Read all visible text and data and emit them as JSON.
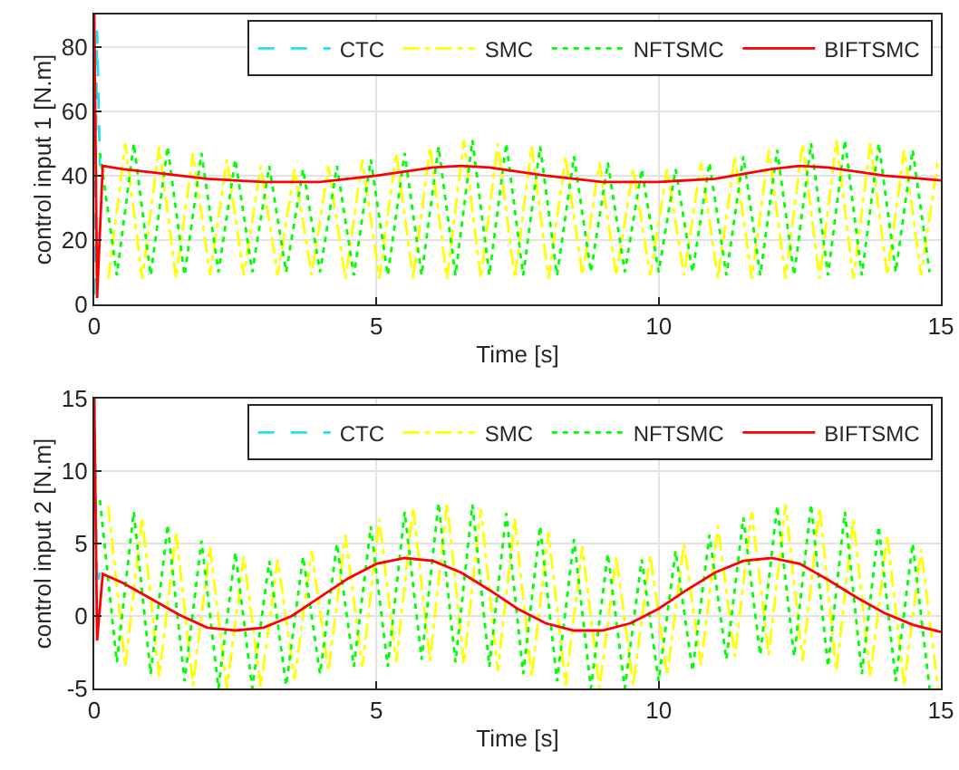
{
  "chart_data": [
    {
      "type": "line",
      "xlabel": "Time [s]",
      "ylabel": "control input 1 [N.m]",
      "xlim": [
        0,
        15
      ],
      "xticks": [
        0,
        5,
        10,
        15
      ],
      "ylim": [
        0,
        90
      ],
      "yticks": [
        0,
        20,
        40,
        60,
        80
      ],
      "grid": true,
      "legend": "top right",
      "series": [
        {
          "name": "CTC",
          "color": "#22e0f0",
          "line_style": "dashed",
          "x": [
            0,
            0.05,
            0.1
          ],
          "values": [
            3,
            85,
            43
          ]
        },
        {
          "name": "SMC",
          "color": "#ffff00",
          "line_style": "dashdot",
          "x": [
            0.25,
            0.55,
            0.85,
            1.15,
            1.45,
            1.75,
            2.05,
            2.35,
            2.65,
            2.95,
            3.25,
            3.55,
            3.85,
            4.15,
            4.45,
            4.75,
            5.05,
            5.35,
            5.65,
            5.95,
            6.25,
            6.55,
            6.85,
            7.15,
            7.45,
            7.75,
            8.05,
            8.35,
            8.65,
            8.95,
            9.25,
            9.55,
            9.85,
            10.15,
            10.45,
            10.75,
            11.05,
            11.35,
            11.65,
            11.95,
            12.25,
            12.55,
            12.85,
            13.15,
            13.45,
            13.75,
            14.05,
            14.35,
            14.65,
            14.95
          ],
          "values": [
            8,
            50,
            8,
            49,
            8,
            47,
            9,
            45,
            9,
            43,
            9,
            42,
            9,
            43,
            8,
            45,
            8,
            47,
            8,
            49,
            8,
            51,
            8,
            50,
            8,
            49,
            8,
            46,
            9,
            44,
            9,
            42,
            9,
            42,
            9,
            44,
            8,
            46,
            8,
            48,
            8,
            50,
            8,
            51,
            8,
            50,
            9,
            48,
            9,
            45
          ]
        },
        {
          "name": "NFTSMC",
          "color": "#00ff00",
          "line_style": "dotted",
          "x": [
            0.1,
            0.4,
            0.7,
            1.0,
            1.3,
            1.6,
            1.9,
            2.2,
            2.5,
            2.8,
            3.1,
            3.4,
            3.7,
            4.0,
            4.3,
            4.6,
            4.9,
            5.2,
            5.5,
            5.8,
            6.1,
            6.4,
            6.7,
            7.0,
            7.3,
            7.6,
            7.9,
            8.2,
            8.5,
            8.8,
            9.1,
            9.4,
            9.7,
            10.0,
            10.3,
            10.6,
            10.9,
            11.2,
            11.5,
            11.8,
            12.1,
            12.4,
            12.7,
            13.0,
            13.3,
            13.6,
            13.9,
            14.2,
            14.5,
            14.8
          ],
          "values": [
            47,
            9,
            50,
            9,
            49,
            9,
            47,
            10,
            45,
            10,
            43,
            10,
            42,
            10,
            43,
            9,
            45,
            9,
            47,
            9,
            49,
            9,
            51,
            9,
            50,
            9,
            49,
            9,
            46,
            10,
            44,
            10,
            42,
            10,
            42,
            10,
            44,
            9,
            46,
            9,
            48,
            9,
            50,
            9,
            51,
            9,
            50,
            10,
            48,
            10
          ]
        },
        {
          "name": "BIFTSMC",
          "color": "#ff0000",
          "line_style": "solid",
          "x": [
            0,
            0.05,
            0.15,
            0.5,
            1,
            2,
            3,
            4,
            5,
            6,
            6.5,
            7,
            8,
            9,
            10,
            11,
            12,
            12.5,
            13,
            14,
            15
          ],
          "values": [
            90,
            2,
            43,
            42,
            41,
            39,
            38,
            38,
            40,
            42.5,
            43,
            42.5,
            40,
            38,
            38,
            39,
            42,
            43,
            42.5,
            40,
            38.5
          ]
        }
      ]
    },
    {
      "type": "line",
      "xlabel": "Time [s]",
      "ylabel": "control input 2 [N.m]",
      "xlim": [
        0,
        15
      ],
      "xticks": [
        0,
        5,
        10,
        15
      ],
      "ylim": [
        -5,
        15
      ],
      "yticks": [
        -5,
        0,
        5,
        10,
        15
      ],
      "grid": true,
      "legend": "top right",
      "series": [
        {
          "name": "CTC",
          "color": "#22e0f0",
          "line_style": "dashed",
          "x": [
            0,
            0.05,
            0.1
          ],
          "values": [
            15,
            2,
            3
          ]
        },
        {
          "name": "SMC",
          "color": "#ffff00",
          "line_style": "dashdot",
          "x": [
            0.25,
            0.55,
            0.85,
            1.15,
            1.45,
            1.75,
            2.05,
            2.35,
            2.65,
            2.95,
            3.25,
            3.55,
            3.85,
            4.15,
            4.45,
            4.75,
            5.05,
            5.35,
            5.65,
            5.95,
            6.25,
            6.55,
            6.85,
            7.15,
            7.45,
            7.75,
            8.05,
            8.35,
            8.65,
            8.95,
            9.25,
            9.55,
            9.85,
            10.15,
            10.45,
            10.75,
            11.05,
            11.35,
            11.65,
            11.95,
            12.25,
            12.55,
            12.85,
            13.15,
            13.45,
            13.75,
            14.05,
            14.35,
            14.65,
            14.95
          ],
          "values": [
            7.6,
            -3.5,
            6.8,
            -4.2,
            5.8,
            -4.8,
            4.8,
            -5,
            4.1,
            -4.9,
            3.9,
            -4.4,
            4.5,
            -3.8,
            5.6,
            -3.5,
            6.7,
            -3.2,
            7.5,
            -3.1,
            7.8,
            -3.3,
            7.4,
            -3.8,
            6.7,
            -4.2,
            5.8,
            -4.8,
            4.8,
            -5,
            4.1,
            -4.8,
            4.2,
            -4.1,
            5.0,
            -3.4,
            6.2,
            -2.8,
            7.2,
            -2.7,
            7.7,
            -3.1,
            7.5,
            -3.8,
            6.7,
            -4.2,
            5.6,
            -4.8,
            4.6,
            -5
          ]
        },
        {
          "name": "NFTSMC",
          "color": "#00ff00",
          "line_style": "dotted",
          "x": [
            0.1,
            0.4,
            0.7,
            1.0,
            1.3,
            1.6,
            1.9,
            2.2,
            2.5,
            2.8,
            3.1,
            3.4,
            3.7,
            4.0,
            4.3,
            4.6,
            4.9,
            5.2,
            5.5,
            5.8,
            6.1,
            6.4,
            6.7,
            7.0,
            7.3,
            7.6,
            7.9,
            8.2,
            8.5,
            8.8,
            9.1,
            9.4,
            9.7,
            10.0,
            10.3,
            10.6,
            10.9,
            11.2,
            11.5,
            11.8,
            12.1,
            12.4,
            12.7,
            13.0,
            13.3,
            13.6,
            13.9,
            14.2,
            14.5,
            14.8
          ],
          "values": [
            8.0,
            -3.2,
            7.2,
            -4,
            6.3,
            -4.5,
            5.2,
            -5,
            4.4,
            -5,
            3.8,
            -4.8,
            4.1,
            -4,
            5.0,
            -3.5,
            6.2,
            -3.5,
            7.2,
            -3,
            7.8,
            -3.2,
            7.7,
            -3.5,
            7.1,
            -4,
            6.2,
            -4.5,
            5.3,
            -5,
            4.3,
            -5,
            3.9,
            -4.5,
            4.5,
            -3.8,
            5.6,
            -3,
            6.8,
            -2.7,
            7.6,
            -2.8,
            7.7,
            -3.5,
            7.2,
            -4,
            6.2,
            -4.5,
            5.0,
            -5
          ]
        },
        {
          "name": "BIFTSMC",
          "color": "#ff0000",
          "line_style": "solid",
          "x": [
            0,
            0.05,
            0.15,
            0.5,
            1,
            1.5,
            2,
            2.5,
            3,
            3.5,
            4,
            4.5,
            5,
            5.5,
            6,
            6.5,
            7,
            7.5,
            8,
            8.5,
            9,
            9.5,
            10,
            10.5,
            11,
            11.5,
            12,
            12.5,
            13,
            13.5,
            14,
            14.5,
            15
          ],
          "values": [
            15,
            -1.7,
            2.9,
            2.3,
            1.2,
            0.1,
            -0.8,
            -1.0,
            -0.8,
            0.0,
            1.3,
            2.6,
            3.6,
            4.0,
            3.8,
            3.0,
            1.8,
            0.5,
            -0.5,
            -1.0,
            -1.0,
            -0.5,
            0.5,
            1.8,
            3.0,
            3.8,
            4.0,
            3.6,
            2.5,
            1.3,
            0.2,
            -0.6,
            -1.1
          ]
        }
      ]
    }
  ]
}
